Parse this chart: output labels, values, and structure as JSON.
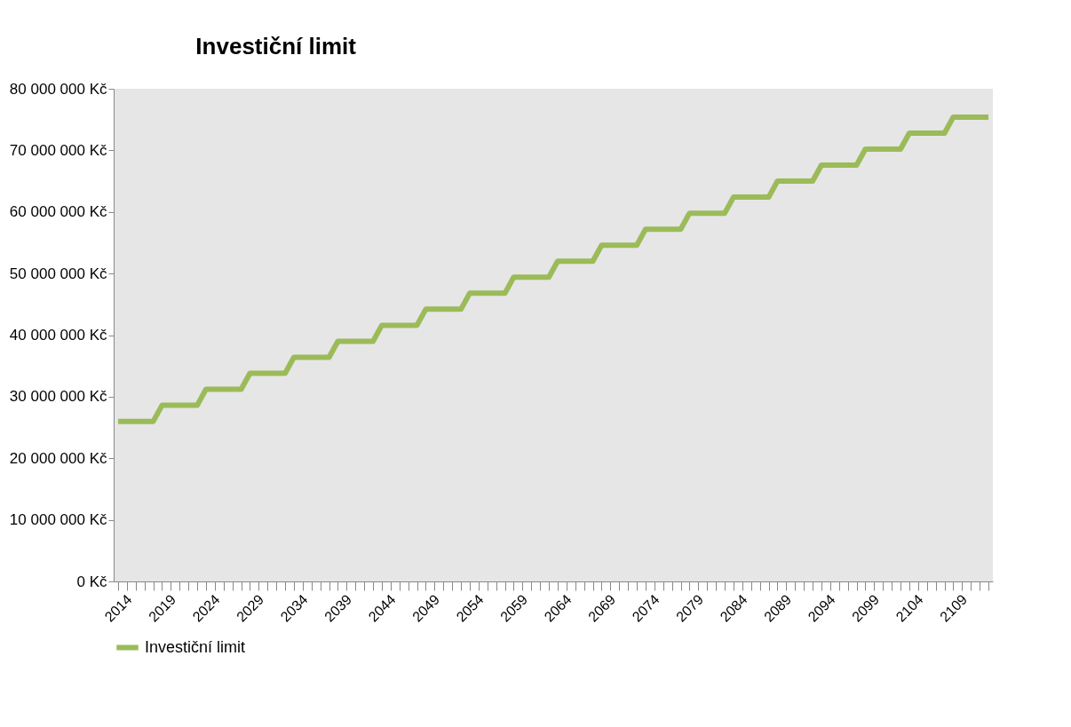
{
  "chart_data": {
    "type": "line",
    "title": "Investiční limit",
    "categories": [
      "2014",
      null,
      null,
      null,
      null,
      "2019",
      null,
      null,
      null,
      null,
      "2024",
      null,
      null,
      null,
      null,
      "2029",
      null,
      null,
      null,
      null,
      "2034",
      null,
      null,
      null,
      null,
      "2039",
      null,
      null,
      null,
      null,
      "2044",
      null,
      null,
      null,
      null,
      "2049",
      null,
      null,
      null,
      null,
      "2054",
      null,
      null,
      null,
      null,
      "2059",
      null,
      null,
      null,
      null,
      "2064",
      null,
      null,
      null,
      null,
      "2069",
      null,
      null,
      null,
      null,
      "2074",
      null,
      null,
      null,
      null,
      "2079",
      null,
      null,
      null,
      null,
      "2084",
      null,
      null,
      null,
      null,
      "2089",
      null,
      null,
      null,
      null,
      "2094",
      null,
      null,
      null,
      null,
      "2099",
      null,
      null,
      null,
      null,
      "2104",
      null,
      null,
      null,
      null,
      "2109",
      null,
      null,
      null,
      null
    ],
    "series": [
      {
        "name": "Investiční limit",
        "color": "#9bbb59",
        "values": [
          26000000,
          26000000,
          26000000,
          26000000,
          26000000,
          28600000,
          28600000,
          28600000,
          28600000,
          28600000,
          31200000,
          31200000,
          31200000,
          31200000,
          31200000,
          33800000,
          33800000,
          33800000,
          33800000,
          33800000,
          36400000,
          36400000,
          36400000,
          36400000,
          36400000,
          39000000,
          39000000,
          39000000,
          39000000,
          39000000,
          41600000,
          41600000,
          41600000,
          41600000,
          41600000,
          44200000,
          44200000,
          44200000,
          44200000,
          44200000,
          46800000,
          46800000,
          46800000,
          46800000,
          46800000,
          49400000,
          49400000,
          49400000,
          49400000,
          49400000,
          52000000,
          52000000,
          52000000,
          52000000,
          52000000,
          54600000,
          54600000,
          54600000,
          54600000,
          54600000,
          57200000,
          57200000,
          57200000,
          57200000,
          57200000,
          59800000,
          59800000,
          59800000,
          59800000,
          59800000,
          62400000,
          62400000,
          62400000,
          62400000,
          62400000,
          65000000,
          65000000,
          65000000,
          65000000,
          65000000,
          67600000,
          67600000,
          67600000,
          67600000,
          67600000,
          70200000,
          70200000,
          70200000,
          70200000,
          70200000,
          72800000,
          72800000,
          72800000,
          72800000,
          72800000,
          75400000,
          75400000,
          75400000,
          75400000,
          75400000
        ]
      }
    ],
    "ylim": [
      0,
      80000000
    ],
    "yticks": [
      {
        "value": 0,
        "label": "0 Kč"
      },
      {
        "value": 10000000,
        "label": "10 000 000 Kč"
      },
      {
        "value": 20000000,
        "label": "20 000 000 Kč"
      },
      {
        "value": 30000000,
        "label": "30 000 000 Kč"
      },
      {
        "value": 40000000,
        "label": "40 000 000 Kč"
      },
      {
        "value": 50000000,
        "label": "50 000 000 Kč"
      },
      {
        "value": 60000000,
        "label": "60 000 000 Kč"
      },
      {
        "value": 70000000,
        "label": "70 000 000 Kč"
      },
      {
        "value": 80000000,
        "label": "80 000 000 Kč"
      }
    ],
    "grid": false,
    "legend": "bottom",
    "marker": "none",
    "line_style": "solid"
  }
}
